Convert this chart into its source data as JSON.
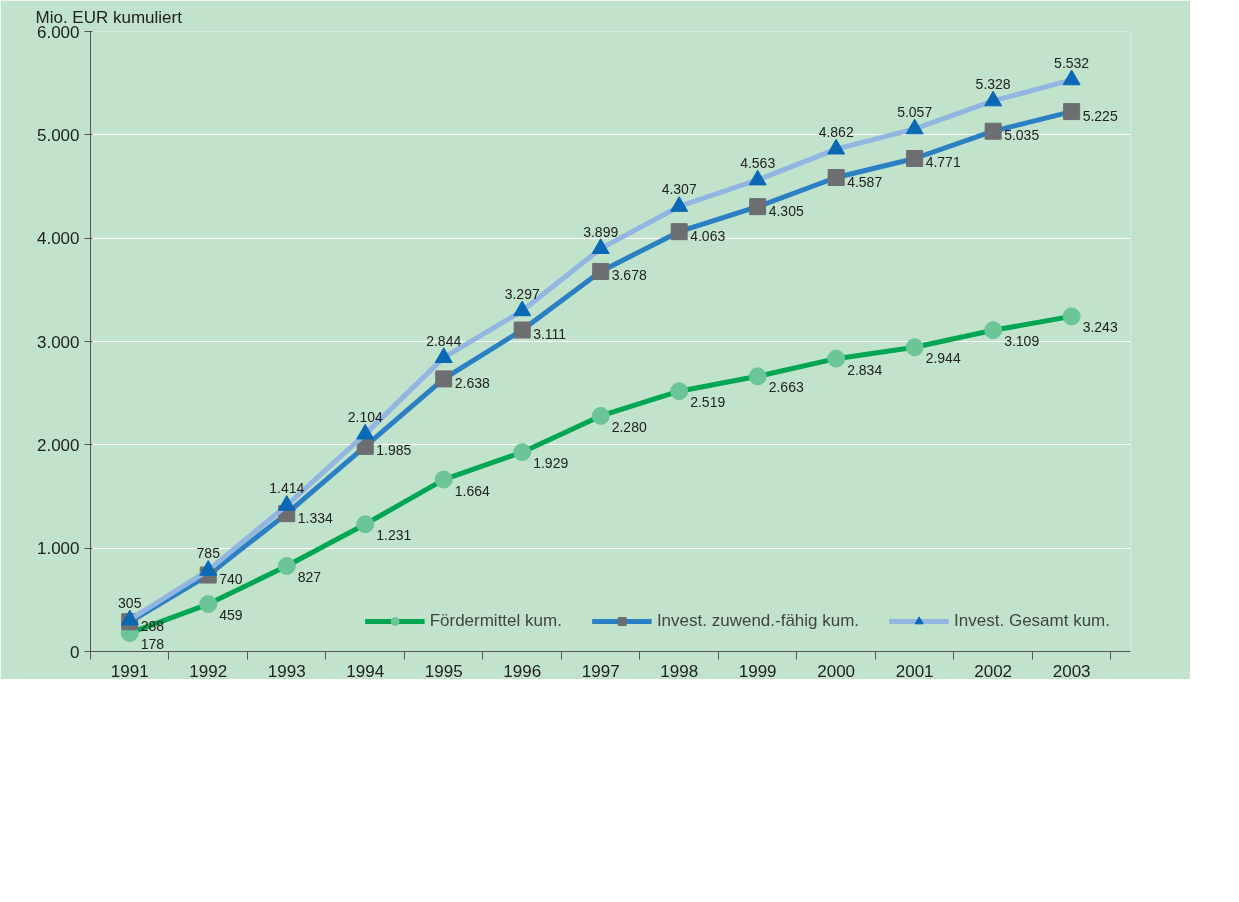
{
  "chart_data": {
    "type": "line",
    "ylabel": "Mio. EUR kumuliert",
    "categories": [
      "1991",
      "1992",
      "1993",
      "1994",
      "1995",
      "1996",
      "1997",
      "1998",
      "1999",
      "2000",
      "2001",
      "2002",
      "2003"
    ],
    "ylim": [
      0,
      6000
    ],
    "yticks": [
      0,
      {
        "value": 1000,
        "label": "1.000"
      },
      {
        "value": 2000,
        "label": "2.000"
      },
      {
        "value": 3000,
        "label": "3.000"
      },
      {
        "value": 4000,
        "label": "4.000"
      },
      {
        "value": 5000,
        "label": "5.000"
      },
      {
        "value": 6000,
        "label": "6.000"
      }
    ],
    "grid": "y",
    "legend": "bottom right",
    "series": [
      {
        "name": "Fördermittel kum.",
        "color": "#00a651",
        "marker": "circle",
        "colors": [
          "#6cc596",
          "#6cc596",
          "#6cc596",
          "#6cc596",
          "#6cc596",
          "#6cc596",
          "#6cc596",
          "#6cc596",
          "#6cc596",
          "#6cc596",
          "#6cc596",
          "#6cc596",
          "#6cc596"
        ],
        "values": [
          178,
          459,
          827,
          1231,
          1664,
          1929,
          2280,
          2519,
          2663,
          2834,
          2944,
          3109,
          3243
        ],
        "value_labels": [
          "178",
          "459",
          "827",
          "1.231",
          "1.664",
          "1.929",
          "2.280",
          "2.519",
          "2.663",
          "2.834",
          "2.944",
          "3.109",
          "3.243"
        ]
      },
      {
        "name": "Invest. zuwend.-fähig kum.",
        "color": "#2b7fc3",
        "marker": "square",
        "colors": [
          "#6d6e71",
          "#6d6e71",
          "#6d6e71",
          "#6d6e71",
          "#6d6e71",
          "#6d6e71",
          "#6d6e71",
          "#6d6e71",
          "#6d6e71",
          "#6d6e71",
          "#6d6e71",
          "#6d6e71",
          "#6d6e71"
        ],
        "values": [
          288,
          740,
          1334,
          1985,
          2638,
          3111,
          3678,
          4063,
          4305,
          4587,
          4771,
          5035,
          5225
        ],
        "value_labels": [
          "288",
          "740",
          "1.334",
          "1.985",
          "2.638",
          "3.111",
          "3.678",
          "4.063",
          "4.305",
          "4.587",
          "4.771",
          "5.035",
          "5.225"
        ]
      },
      {
        "name": "Invest. Gesamt kum.",
        "color": "#93b5e1",
        "marker": "triangle",
        "colors": [
          "#0a68b4",
          "#0a68b4",
          "#0a68b4",
          "#0a68b4",
          "#0a68b4",
          "#0a68b4",
          "#0a68b4",
          "#0a68b4",
          "#0a68b4",
          "#0a68b4",
          "#0a68b4",
          "#0a68b4",
          "#0a68b4"
        ],
        "values": [
          305,
          785,
          1414,
          2104,
          2844,
          3297,
          3899,
          4307,
          4563,
          4862,
          5057,
          5328,
          5532
        ],
        "value_labels": [
          "305",
          "785",
          "1.414",
          "2.104",
          "2.844",
          "3.297",
          "3.899",
          "4.307",
          "4.563",
          "4.862",
          "5.057",
          "5.328",
          "5.532"
        ]
      }
    ]
  }
}
